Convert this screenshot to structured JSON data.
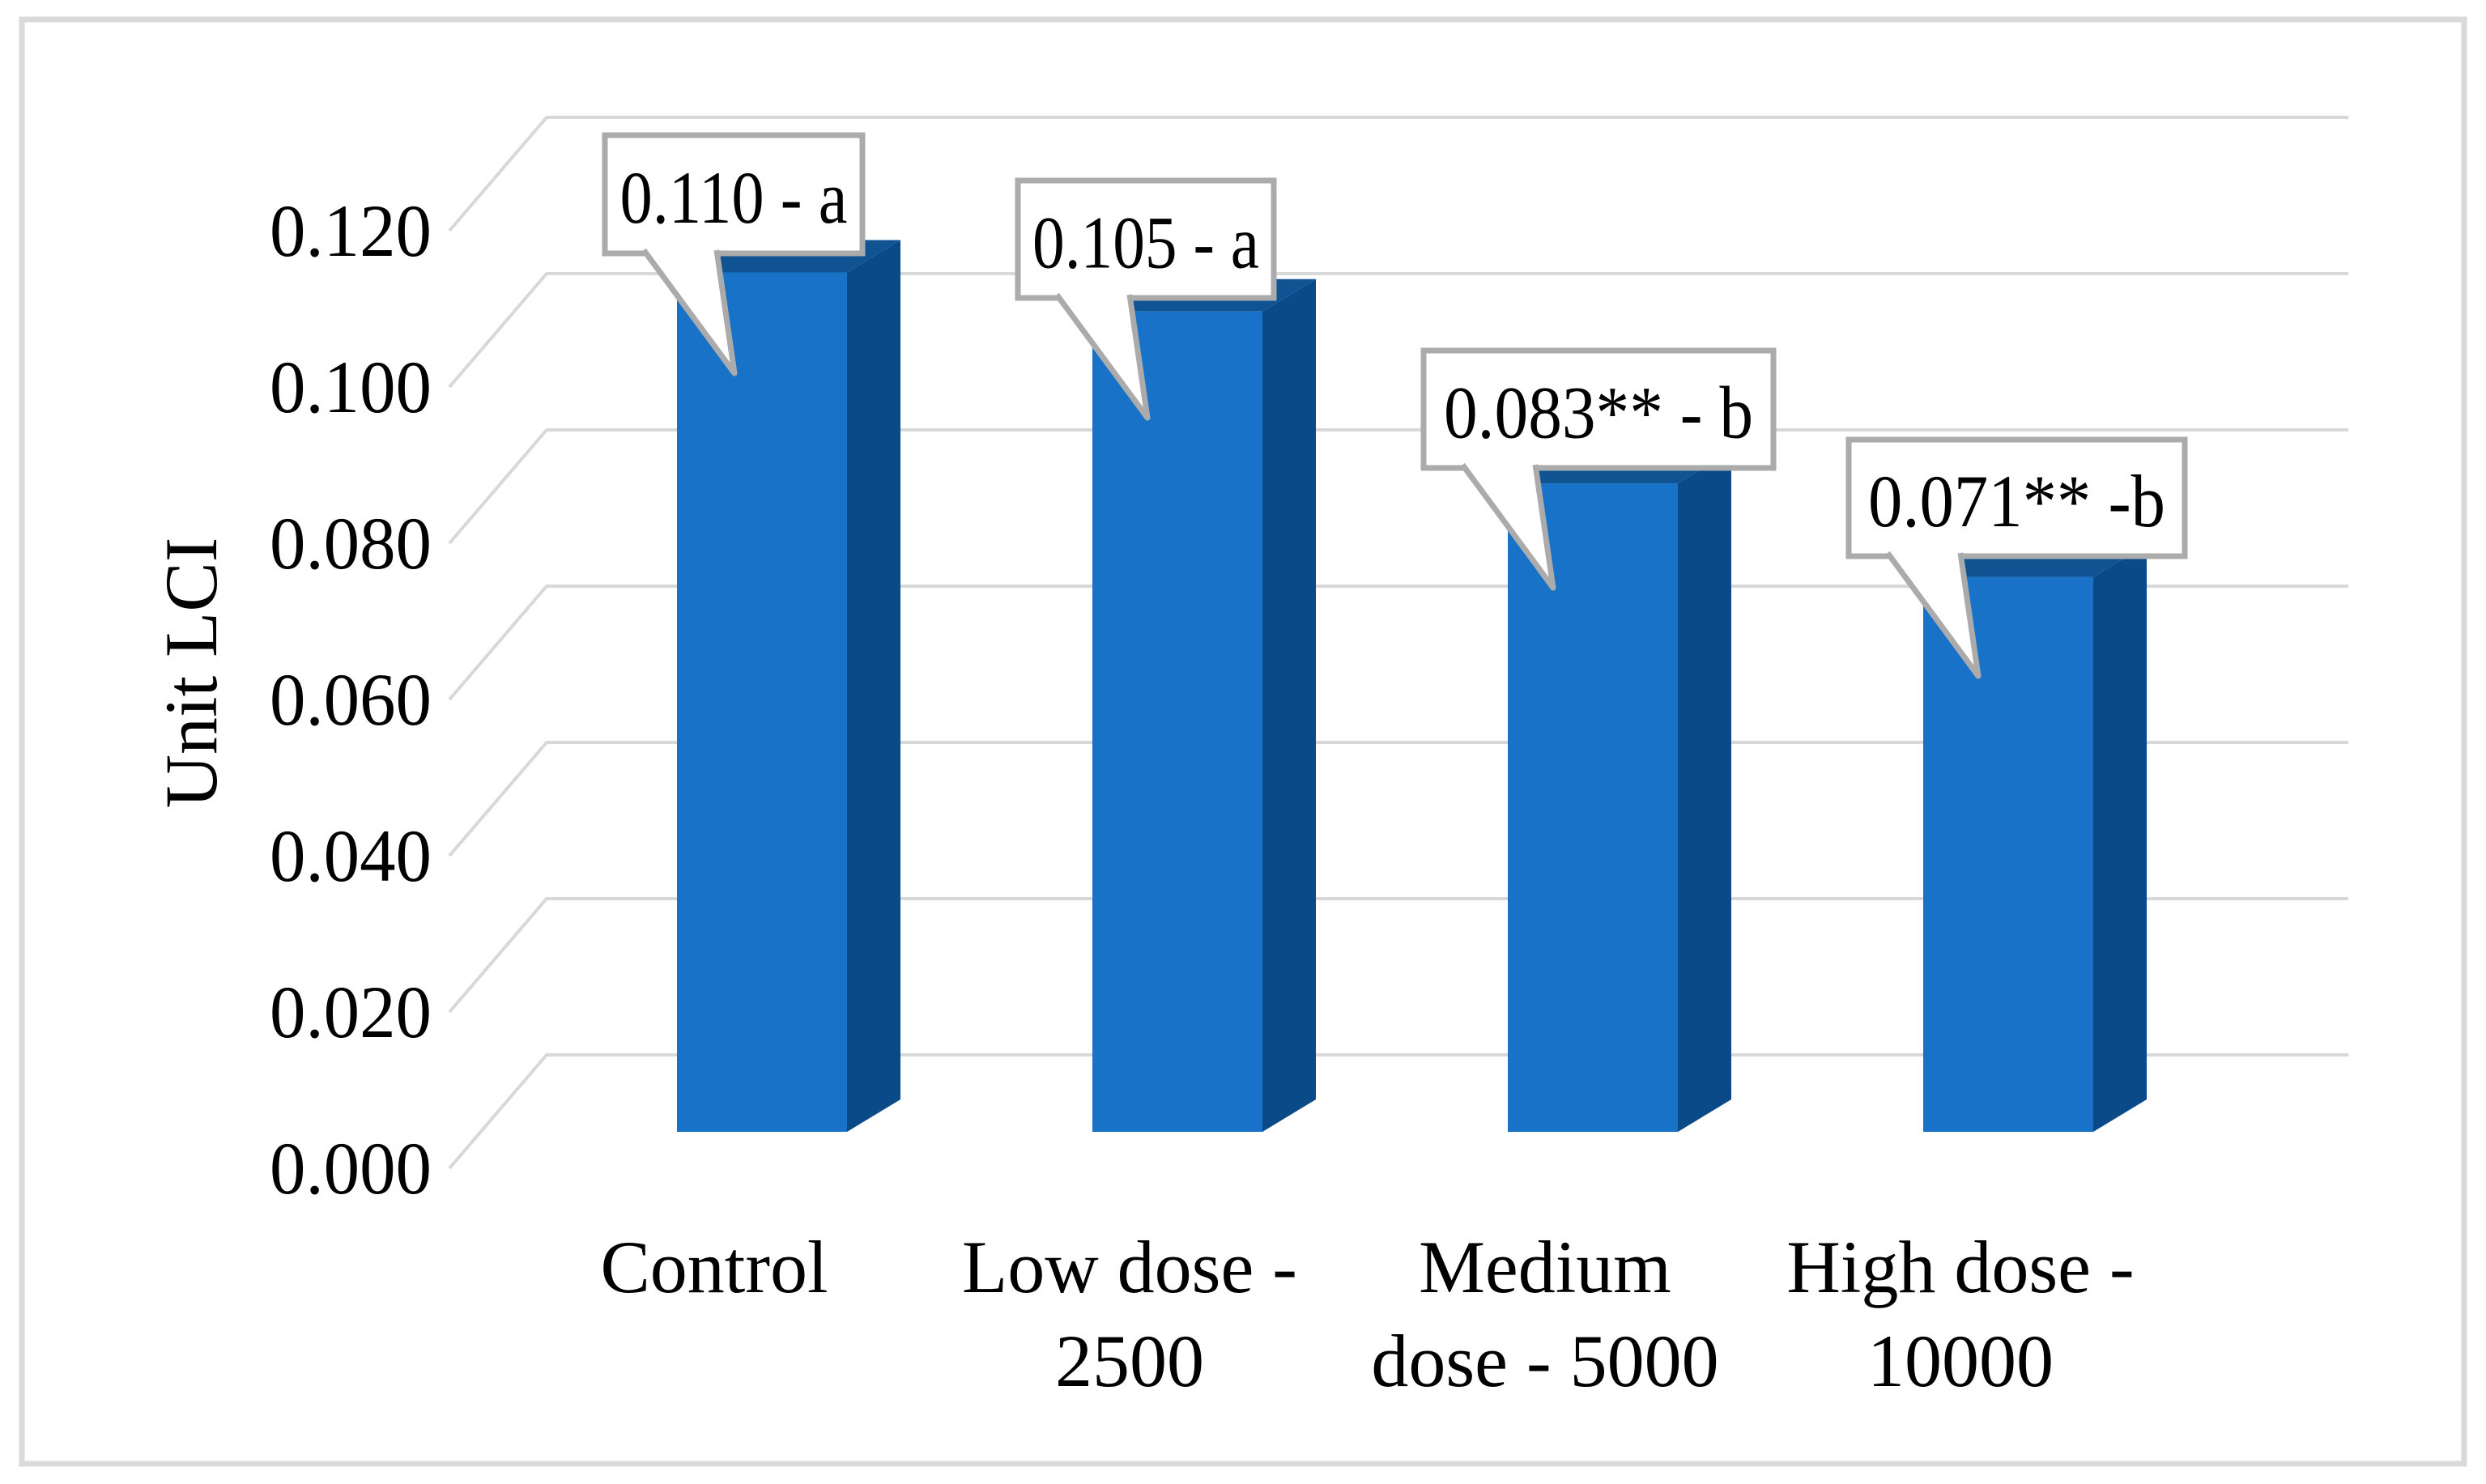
{
  "figure": {
    "background": "#FFFFFF",
    "border_color": "#D9D9D9"
  },
  "chart_data": {
    "type": "bar",
    "style": "3d-column",
    "title": "",
    "xlabel": "",
    "ylabel": "Unit LCI",
    "categories": [
      "Control",
      "Low dose - 2500",
      "Medium dose - 5000",
      "High dose - 10000"
    ],
    "category_lines": [
      [
        "Control"
      ],
      [
        "Low dose -",
        "2500"
      ],
      [
        "Medium",
        "dose - 5000"
      ],
      [
        "High dose -",
        "10000"
      ]
    ],
    "values": [
      0.11,
      0.105,
      0.083,
      0.071
    ],
    "data_labels": [
      "0.110 - a",
      "0.105 - a",
      "0.083** - b",
      "0.071** -b"
    ],
    "yticks": [
      "0.000",
      "0.020",
      "0.040",
      "0.060",
      "0.080",
      "0.100",
      "0.120"
    ],
    "ylim": [
      0,
      0.12
    ],
    "grid": true,
    "legend": "none",
    "colors": {
      "bar_front": "#1873C8",
      "bar_side": "#0B4A88",
      "bar_top": "#0F5393",
      "gridline": "#D8D8D8",
      "callout_fill": "#FFFFFF",
      "callout_border": "#ABABAB",
      "text": "#000000"
    }
  }
}
